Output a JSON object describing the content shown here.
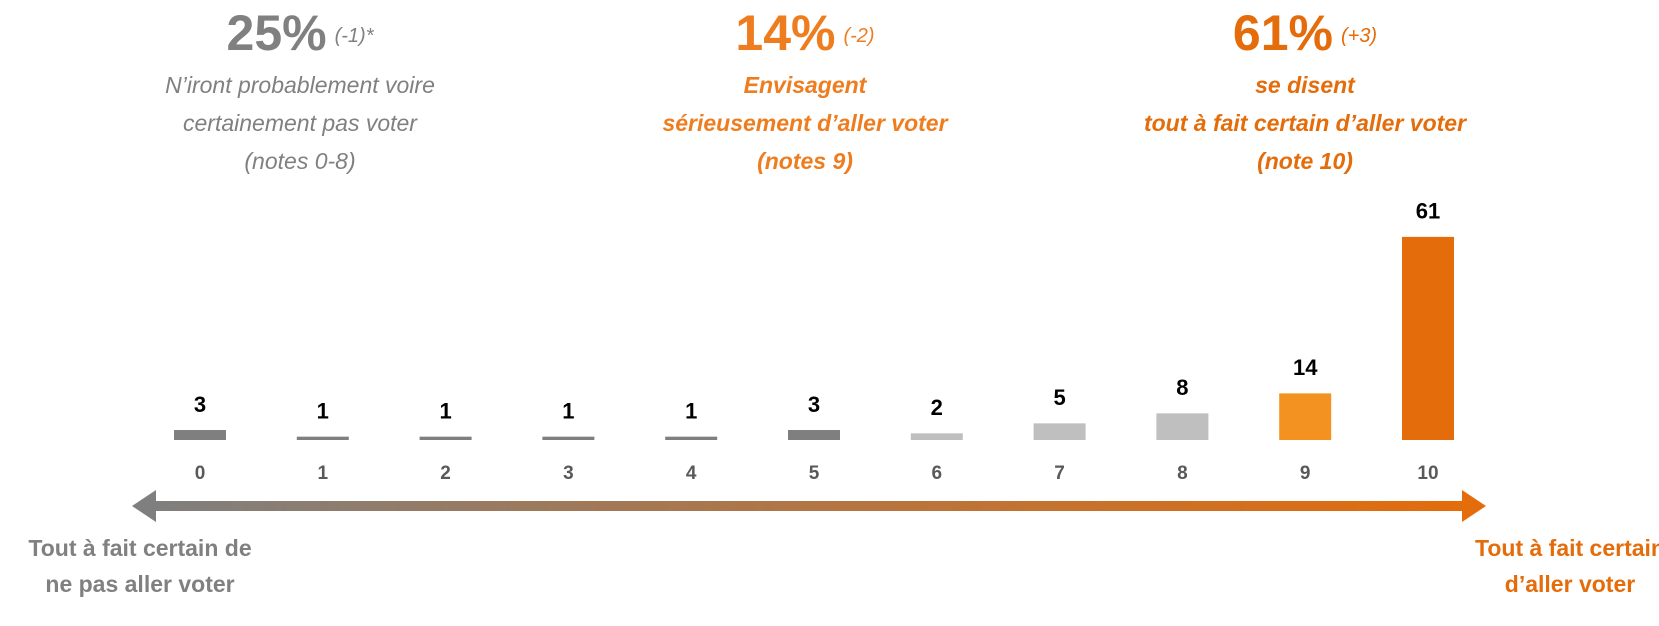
{
  "chart_data": {
    "type": "bar",
    "categories": [
      "0",
      "1",
      "2",
      "3",
      "4",
      "5",
      "6",
      "7",
      "8",
      "9",
      "10"
    ],
    "values": [
      3,
      1,
      1,
      1,
      1,
      3,
      2,
      5,
      8,
      14,
      61
    ],
    "colors": [
      "#7f7f7f",
      "#7f7f7f",
      "#7f7f7f",
      "#7f7f7f",
      "#7f7f7f",
      "#7f7f7f",
      "#bfbfbf",
      "#bfbfbf",
      "#bfbfbf",
      "#f39221",
      "#e46c0a"
    ],
    "annotations": [
      {
        "percent": "25%",
        "change": "(-1)*",
        "lines": [
          "N’iront probablement voire",
          "certainement pas voter",
          "(notes 0-8)"
        ],
        "color": "#808080"
      },
      {
        "percent": "14%",
        "change": "(-2)",
        "lines": [
          "Envisagent",
          "sérieusement d’aller voter",
          "(notes 9)"
        ],
        "color": "#ee7d1f"
      },
      {
        "percent": "61%",
        "change": "(+3)",
        "lines": [
          "se disent",
          "tout à fait certain d’aller voter",
          "(note 10)"
        ],
        "color": "#e46c0a"
      }
    ],
    "axis_left_label": [
      "Tout à fait certain de",
      "ne pas aller voter"
    ],
    "axis_right_label": [
      "Tout à fait certain",
      "d’aller voter"
    ]
  }
}
